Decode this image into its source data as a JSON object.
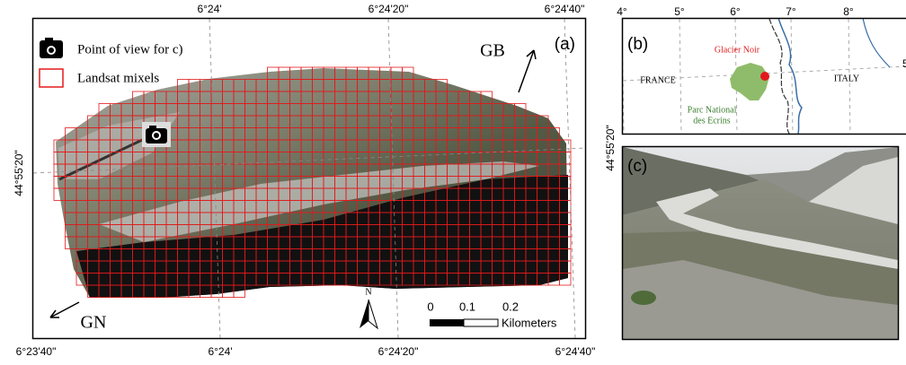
{
  "panel_a": {
    "label": "(a)",
    "legend": [
      {
        "label": "Point of view for c)"
      },
      {
        "label": "Landsat mixels"
      }
    ],
    "top_ticks": [
      "6°24'",
      "6°24'20\"",
      "6°24'40\""
    ],
    "bottom_ticks": [
      "6°23'40\"",
      "6°24'",
      "6°24'20\"",
      "6°24'40\""
    ],
    "left_tick": "44°55'20\"",
    "right_tick": "44°55'20\"",
    "north": "N",
    "up_direction": "GB",
    "down_direction": "GN",
    "scale": {
      "ticks": [
        0,
        0.1,
        0.2
      ],
      "unit": "Kilometers"
    }
  },
  "panel_b": {
    "label": "(b)",
    "top_ticks": [
      "4°",
      "5°",
      "6°",
      "7°",
      "8°"
    ],
    "right_tick": "5",
    "site": "Glacier Noir",
    "countries": [
      "FRANCE",
      "ITALY"
    ],
    "park": [
      "Parc National",
      "des Ecrins"
    ]
  },
  "panel_c": {
    "label": "(c)"
  }
}
